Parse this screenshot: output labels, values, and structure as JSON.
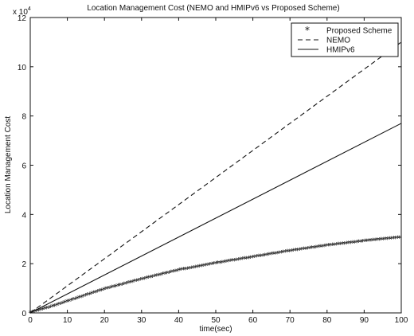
{
  "chart_data": {
    "type": "line",
    "title": "Location Management Cost (NEMO and HMIPv6 vs Proposed Scheme)",
    "xlabel": "time(sec)",
    "ylabel": "Location Management Cost",
    "y_exponent_label": "x 10",
    "y_exponent": "4",
    "xlim": [
      0,
      100
    ],
    "ylim": [
      0,
      12
    ],
    "x_ticks": [
      0,
      10,
      20,
      30,
      40,
      50,
      60,
      70,
      80,
      90,
      100
    ],
    "y_ticks": [
      0,
      2,
      4,
      6,
      8,
      10,
      12
    ],
    "grid": false,
    "legend_position": "top-right",
    "series": [
      {
        "name": "Proposed Scheme",
        "style": "star-markers",
        "x": [
          0,
          5,
          10,
          20,
          30,
          40,
          50,
          60,
          70,
          80,
          90,
          100
        ],
        "values": [
          0,
          0.2,
          0.45,
          0.95,
          1.35,
          1.72,
          2.0,
          2.25,
          2.5,
          2.72,
          2.9,
          3.05
        ]
      },
      {
        "name": "NEMO",
        "style": "dashed",
        "x": [
          0,
          100
        ],
        "values": [
          0,
          11.0
        ]
      },
      {
        "name": "HMIPv6",
        "style": "solid",
        "x": [
          0,
          100
        ],
        "values": [
          0,
          7.7
        ]
      }
    ]
  }
}
